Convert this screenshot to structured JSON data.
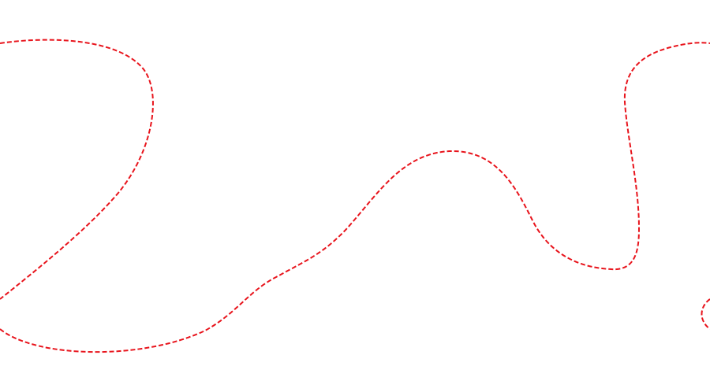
{
  "canvas": {
    "background_color": "#ffffff"
  },
  "curve": {
    "stroke_color": "#e8141c",
    "style": "dashed"
  }
}
